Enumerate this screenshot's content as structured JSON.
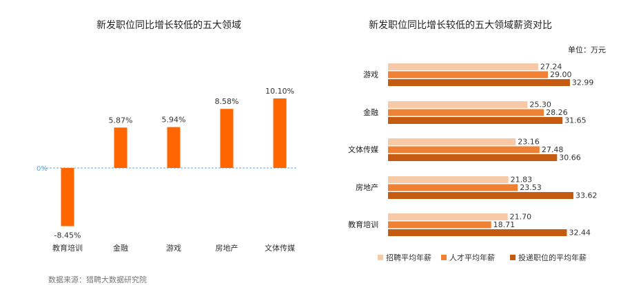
{
  "left_title": "新发职位同比增长较低的五大领域",
  "right_title": "新发职位同比增长较低的五大领域薪资对比",
  "unit_label": "单位：万元",
  "source_note": "数据来源：猎聘大数据研究院",
  "colors": {
    "growth_bar": "#ff6600",
    "zero_line": "#5aa5e6",
    "recruit": "#f7c9a6",
    "talent": "#ee8133",
    "delivered": "#c55a11"
  },
  "chart_data": [
    {
      "type": "bar",
      "title": "新发职位同比增长较低的五大领域",
      "categories": [
        "教育培训",
        "金融",
        "游戏",
        "房地产",
        "文体传媒"
      ],
      "values": [
        -8.45,
        5.87,
        5.94,
        8.58,
        10.1
      ],
      "value_labels": [
        "-8.45%",
        "5.87%",
        "5.94%",
        "8.58%",
        "10.10%"
      ],
      "zero_label": "0%",
      "ylim": [
        -10,
        12
      ],
      "grid": false
    },
    {
      "type": "bar",
      "orientation": "horizontal",
      "title": "新发职位同比增长较低的五大领域薪资对比",
      "unit": "单位：万元",
      "categories": [
        "游戏",
        "金融",
        "文体传媒",
        "房地产",
        "教育培训"
      ],
      "series": [
        {
          "name": "招聘平均年薪",
          "values": [
            27.24,
            25.3,
            23.16,
            21.83,
            21.7
          ],
          "labels": [
            "27.24",
            "25.30",
            "23.16",
            "21.83",
            "21.70"
          ]
        },
        {
          "name": "人才平均年薪",
          "values": [
            29.0,
            28.26,
            27.48,
            23.53,
            18.71
          ],
          "labels": [
            "29.00",
            "28.26",
            "27.48",
            "23.53",
            "18.71"
          ]
        },
        {
          "name": "投递职位的平均年薪",
          "values": [
            32.99,
            31.65,
            30.66,
            33.62,
            32.44
          ],
          "labels": [
            "32.99",
            "31.65",
            "30.66",
            "33.62",
            "32.44"
          ]
        }
      ],
      "legend_position": "bottom",
      "xlim": [
        0,
        35
      ],
      "grid": false
    }
  ]
}
